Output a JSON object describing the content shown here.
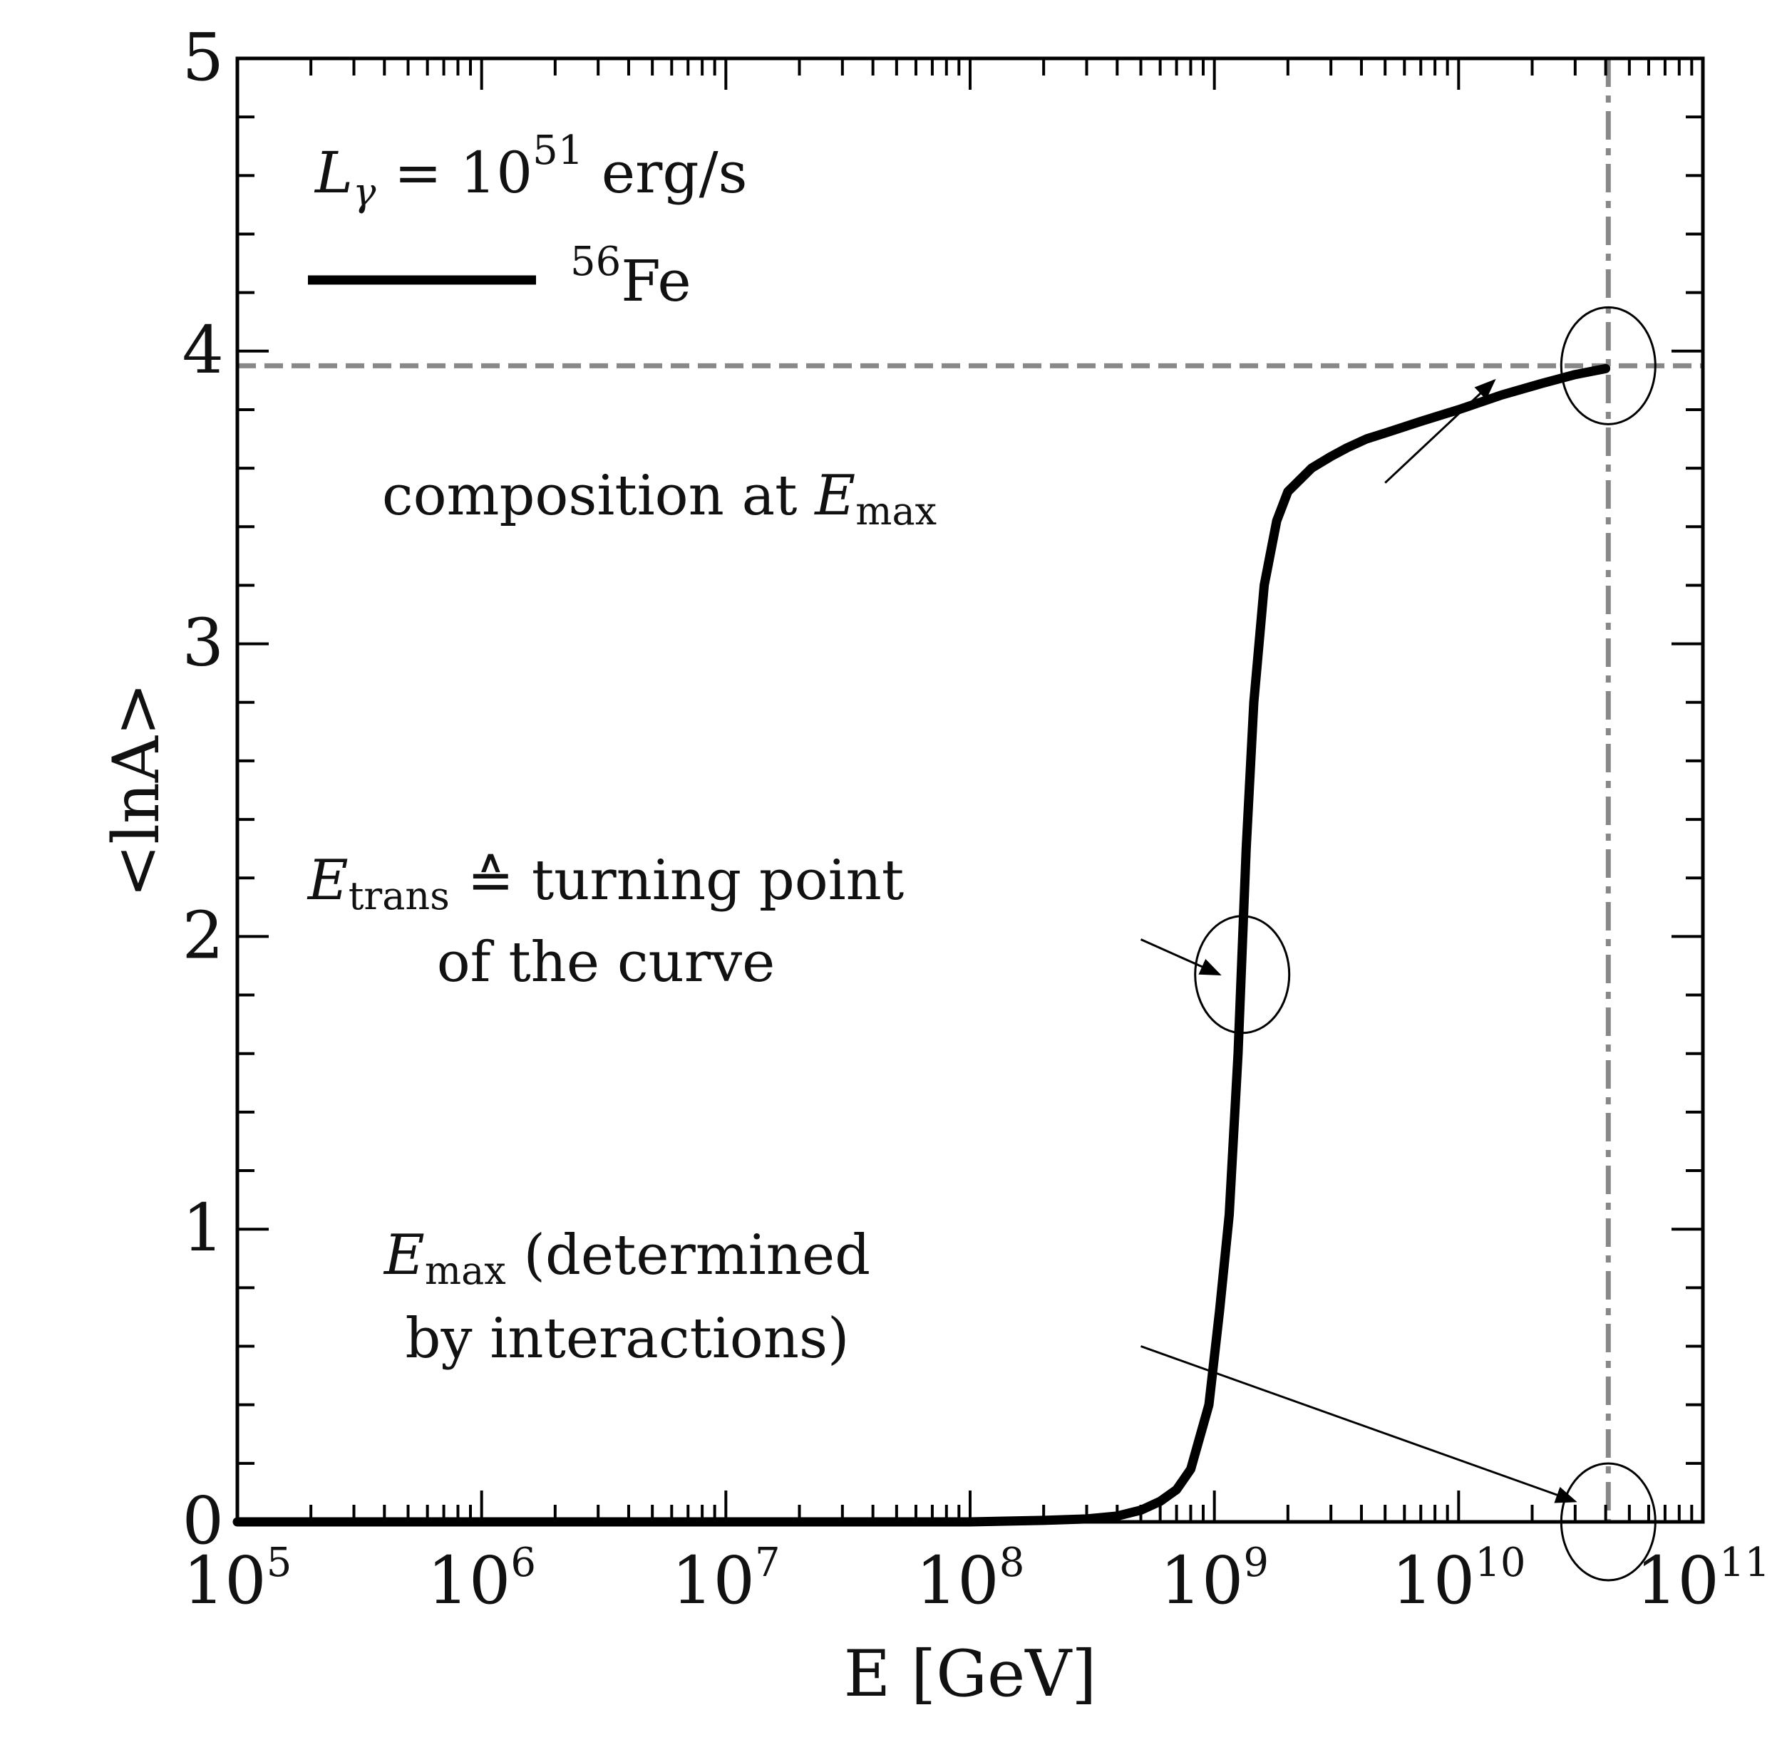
{
  "chart_data": {
    "type": "line",
    "title": "",
    "xlabel": "E [GeV]",
    "ylabel": "<lnA>",
    "xscale": "log",
    "xlim": [
      100000,
      100000000000
    ],
    "ylim": [
      0,
      5
    ],
    "x_ticks": [
      {
        "value": 100000,
        "base": "10",
        "exp": "5"
      },
      {
        "value": 1000000,
        "base": "10",
        "exp": "6"
      },
      {
        "value": 10000000,
        "base": "10",
        "exp": "7"
      },
      {
        "value": 100000000,
        "base": "10",
        "exp": "8"
      },
      {
        "value": 1000000000,
        "base": "10",
        "exp": "9"
      },
      {
        "value": 10000000000,
        "base": "10",
        "exp": "10"
      },
      {
        "value": 100000000000,
        "base": "10",
        "exp": "11"
      }
    ],
    "y_ticks": [
      "0",
      "1",
      "2",
      "3",
      "4",
      "5"
    ],
    "grid": false,
    "legend": {
      "position": "top-left",
      "header_main": "L",
      "header_sub": "γ",
      "header_rest": " = 10",
      "header_sup": "51",
      "header_unit": " erg/s",
      "entries": [
        {
          "label_sup": "56",
          "label_main": "Fe",
          "color": "#000000",
          "style": "solid"
        }
      ]
    },
    "series": [
      {
        "name": "56Fe",
        "color": "#000000",
        "x": [
          100000,
          1000000,
          10000000,
          100000000,
          200000000,
          300000000,
          400000000,
          500000000,
          600000000,
          700000000,
          800000000,
          950000000,
          1050000000,
          1150000000,
          1250000000,
          1350000000,
          1450000000,
          1600000000,
          1800000000,
          2000000000,
          2500000000,
          3000000000,
          3500000000,
          4200000000,
          5000000000,
          7000000000,
          10000000000,
          15000000000,
          22000000000,
          30000000000,
          40000000000
        ],
        "y": [
          0.0,
          0.0,
          0.0,
          0.0,
          0.005,
          0.01,
          0.02,
          0.04,
          0.07,
          0.11,
          0.18,
          0.4,
          0.72,
          1.05,
          1.6,
          2.3,
          2.8,
          3.2,
          3.42,
          3.52,
          3.6,
          3.64,
          3.67,
          3.7,
          3.72,
          3.76,
          3.8,
          3.85,
          3.89,
          3.92,
          3.94
        ]
      }
    ],
    "reference_lines": [
      {
        "orientation": "horizontal",
        "value": 3.95,
        "color": "#888888",
        "style": "dashed"
      },
      {
        "orientation": "vertical",
        "value": 41000000000,
        "color": "#888888",
        "style": "dash-dot"
      }
    ],
    "markers": [
      {
        "name": "emax-top",
        "x": 41000000000,
        "y": 3.95
      },
      {
        "name": "turning-point",
        "x": 1300000000,
        "y": 1.87
      },
      {
        "name": "emax-bottom",
        "x": 41000000000,
        "y": 0.0
      }
    ],
    "annotations": [
      {
        "id": "composition",
        "lines": [
          {
            "parts": [
              [
                "",
                "composition at "
              ],
              [
                "i",
                "E"
              ],
              [
                "s",
                "max"
              ]
            ]
          }
        ],
        "from": [
          5000000000,
          3.55
        ],
        "to": [
          14000000000,
          3.9
        ]
      },
      {
        "id": "turning",
        "lines": [
          {
            "parts": [
              [
                "i",
                "E"
              ],
              [
                "s",
                "trans"
              ],
              [
                "",
                " ≙ turning point"
              ]
            ]
          },
          {
            "parts": [
              [
                "",
                "of the curve"
              ]
            ]
          }
        ],
        "from": [
          500000000,
          1.99
        ],
        "to": [
          1050000000,
          1.87
        ]
      },
      {
        "id": "emax",
        "lines": [
          {
            "parts": [
              [
                "i",
                "E"
              ],
              [
                "s",
                "max"
              ],
              [
                "",
                " (determined"
              ]
            ]
          },
          {
            "parts": [
              [
                "",
                "by interactions)"
              ]
            ]
          }
        ],
        "from": [
          500000000,
          0.6
        ],
        "to": [
          30000000000,
          0.07
        ]
      }
    ]
  }
}
